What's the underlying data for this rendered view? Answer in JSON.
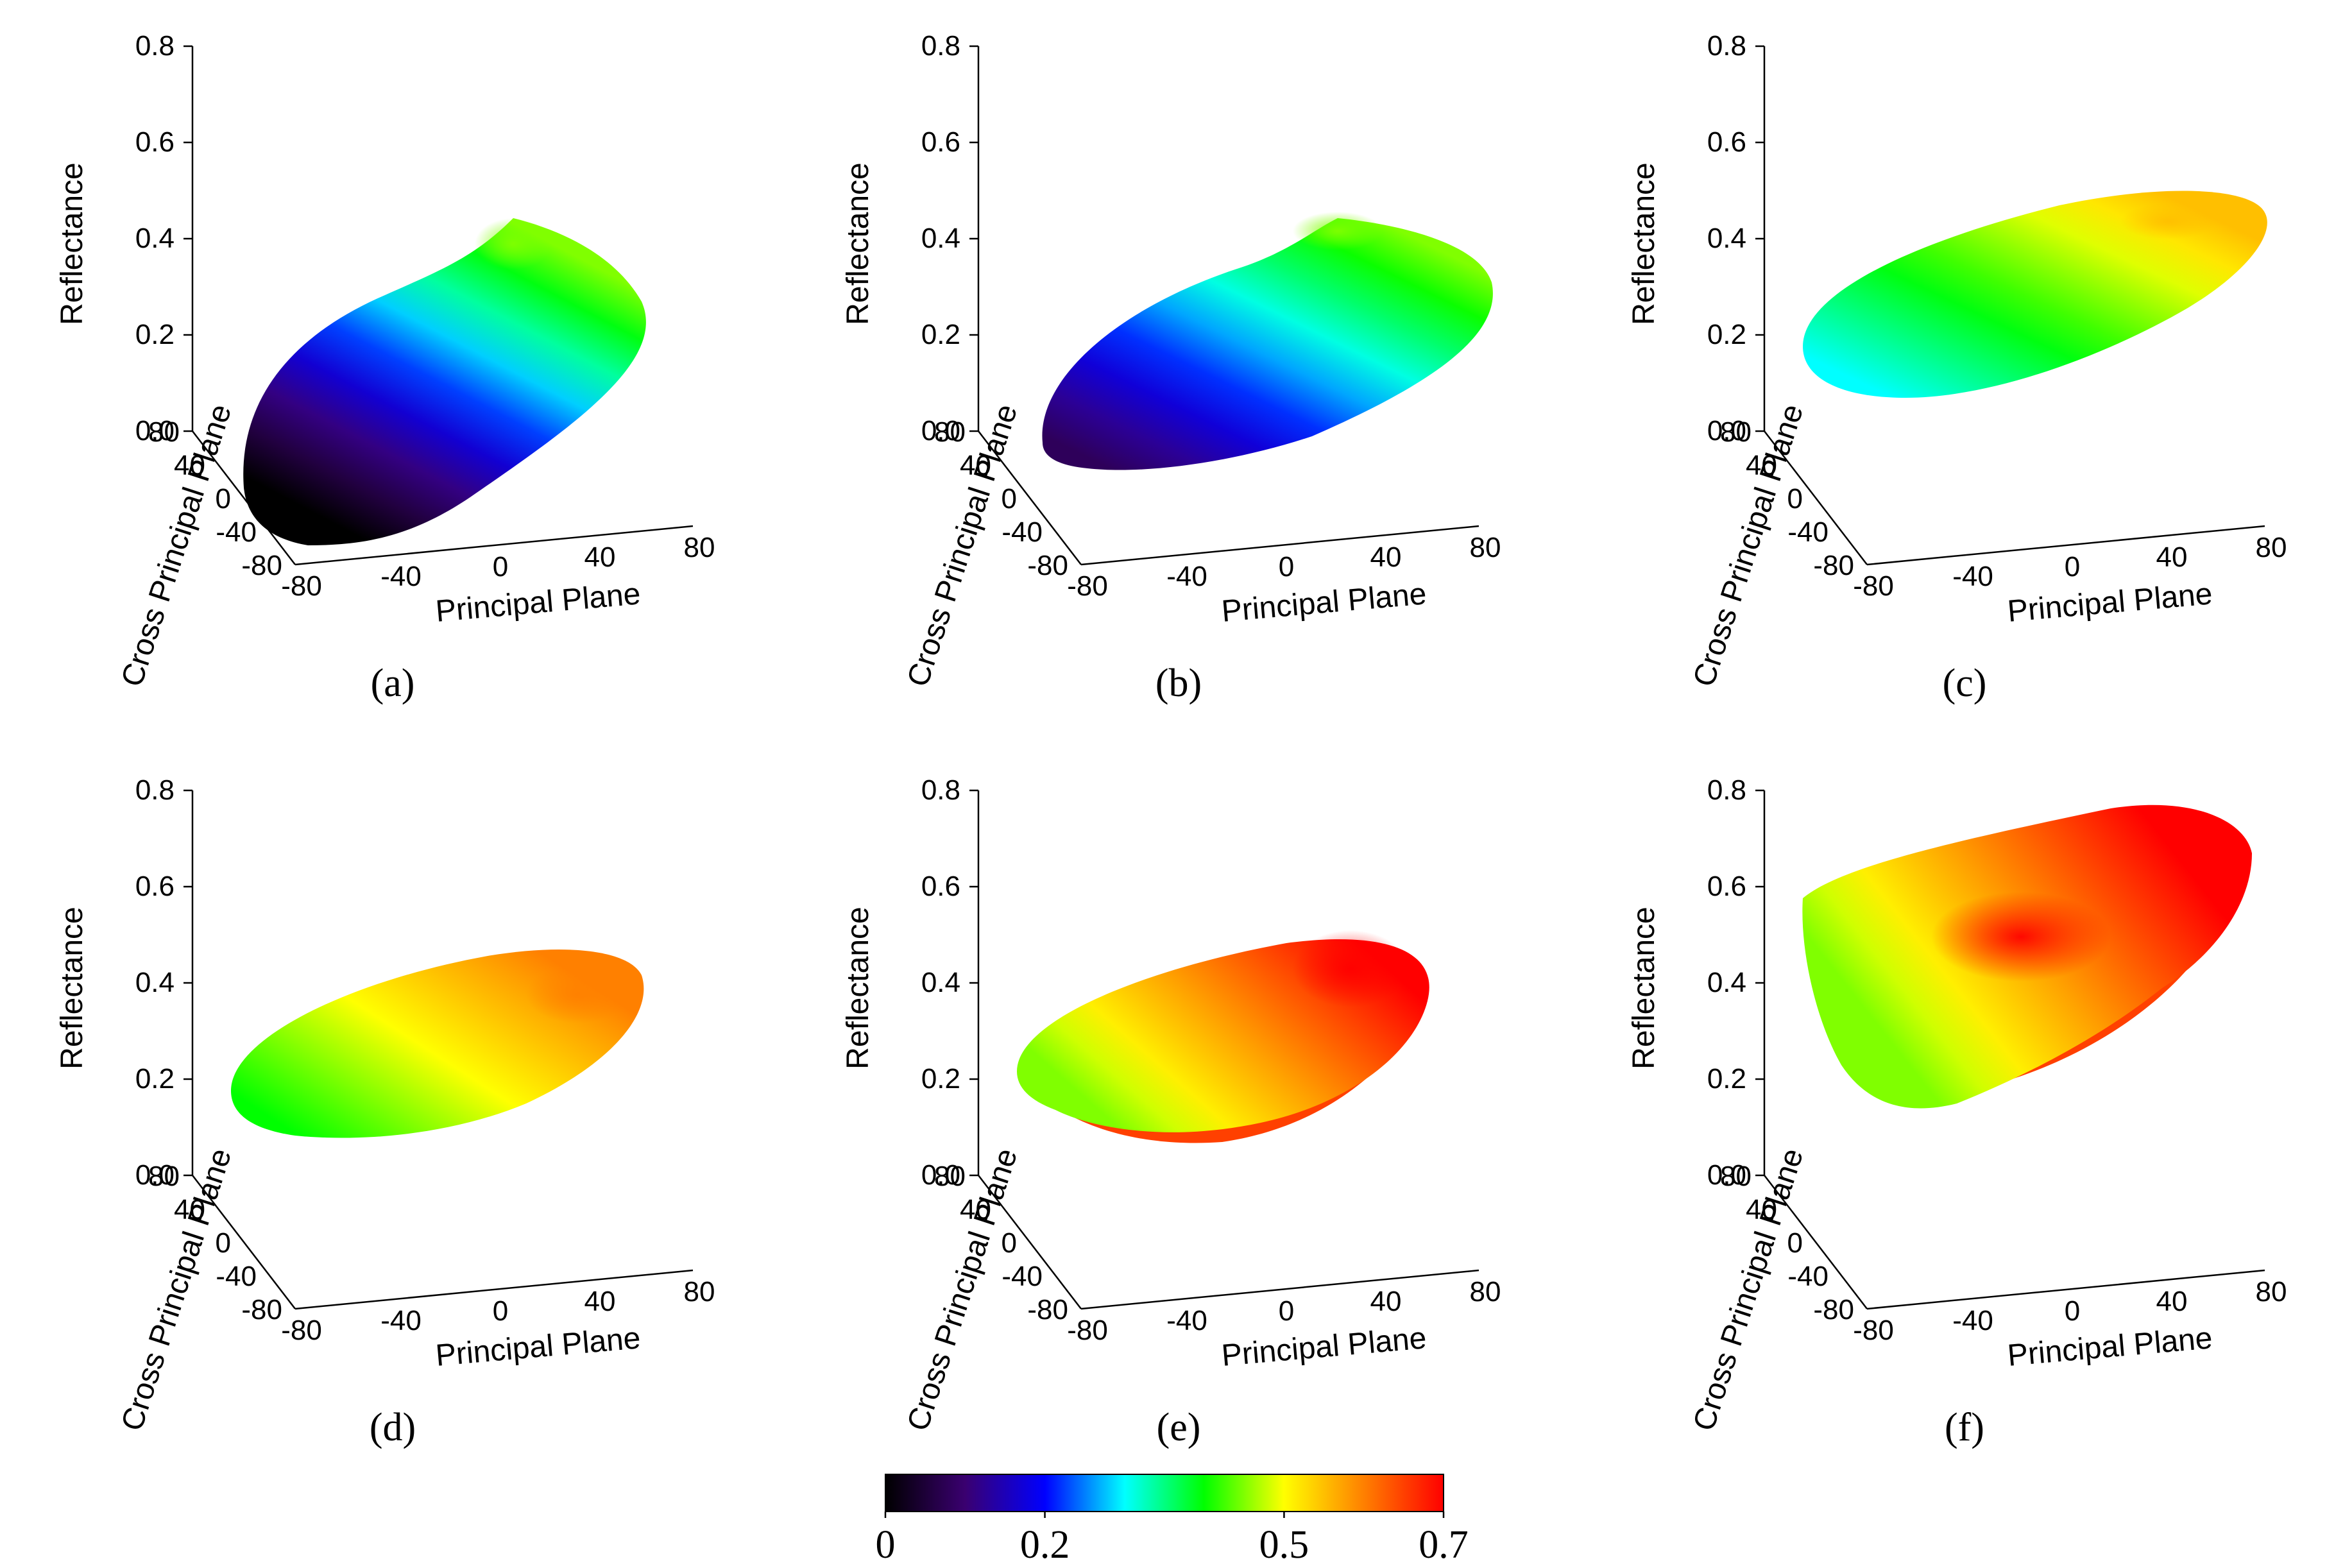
{
  "chart_data": {
    "type": "3d-surface",
    "panels": [
      {
        "id": "a",
        "label": "(a)",
        "zlim": [
          0.0,
          0.8
        ],
        "z_ticks": [
          "0.0",
          "0.2",
          "0.4",
          "0.6",
          "0.8"
        ],
        "x_ticks": [
          "-80",
          "-40",
          "0",
          "40",
          "80"
        ],
        "y_ticks": [
          "-80",
          "-40",
          "0",
          "40",
          "80"
        ],
        "zlabel": "Reflectance",
        "xlabel": "Principal Plane",
        "ylabel": "Cross Principal Plane",
        "surface": {
          "min": 0.0,
          "max": 0.45,
          "bowl": false
        }
      },
      {
        "id": "b",
        "label": "(b)",
        "zlim": [
          0.0,
          0.8
        ],
        "z_ticks": [
          "0.0",
          "0.2",
          "0.4",
          "0.6",
          "0.8"
        ],
        "x_ticks": [
          "-80",
          "-40",
          "0",
          "40",
          "80"
        ],
        "y_ticks": [
          "-80",
          "-40",
          "0",
          "40",
          "80"
        ],
        "zlabel": "Reflectance",
        "xlabel": "Principal Plane",
        "ylabel": "Cross Principal Plane",
        "surface": {
          "min": 0.08,
          "max": 0.45,
          "bowl": false
        }
      },
      {
        "id": "c",
        "label": "(c)",
        "zlim": [
          0.0,
          0.8
        ],
        "z_ticks": [
          "0.0",
          "0.2",
          "0.4",
          "0.6",
          "0.8"
        ],
        "x_ticks": [
          "-80",
          "-40",
          "0",
          "40",
          "80"
        ],
        "y_ticks": [
          "-80",
          "-40",
          "0",
          "40",
          "80"
        ],
        "zlabel": "Reflectance",
        "xlabel": "Principal Plane",
        "ylabel": "Cross Principal Plane",
        "surface": {
          "min": 0.3,
          "max": 0.55,
          "bowl": false
        }
      },
      {
        "id": "d",
        "label": "(d)",
        "zlim": [
          0.0,
          0.8
        ],
        "z_ticks": [
          "0.0",
          "0.2",
          "0.4",
          "0.6",
          "0.8"
        ],
        "x_ticks": [
          "-80",
          "-40",
          "0",
          "40",
          "80"
        ],
        "y_ticks": [
          "-80",
          "-40",
          "0",
          "40",
          "80"
        ],
        "zlabel": "Reflectance",
        "xlabel": "Principal Plane",
        "ylabel": "Cross Principal Plane",
        "surface": {
          "min": 0.4,
          "max": 0.6,
          "bowl": false
        }
      },
      {
        "id": "e",
        "label": "(e)",
        "zlim": [
          0.0,
          0.8
        ],
        "z_ticks": [
          "0.0",
          "0.2",
          "0.4",
          "0.6",
          "0.8"
        ],
        "x_ticks": [
          "-80",
          "-40",
          "0",
          "40",
          "80"
        ],
        "y_ticks": [
          "-80",
          "-40",
          "0",
          "40",
          "80"
        ],
        "zlabel": "Reflectance",
        "xlabel": "Principal Plane",
        "ylabel": "Cross Principal Plane",
        "surface": {
          "min": 0.45,
          "max": 0.7,
          "bowl": true
        }
      },
      {
        "id": "f",
        "label": "(f)",
        "zlim": [
          0.0,
          0.8
        ],
        "z_ticks": [
          "0.0",
          "0.2",
          "0.4",
          "0.6",
          "0.8"
        ],
        "x_ticks": [
          "-80",
          "-40",
          "0",
          "40",
          "80"
        ],
        "y_ticks": [
          "-80",
          "-40",
          "0",
          "40",
          "80"
        ],
        "zlabel": "Reflectance",
        "xlabel": "Principal Plane",
        "ylabel": "Cross Principal Plane",
        "surface": {
          "min": 0.45,
          "max": 0.7,
          "bowl": true
        }
      }
    ],
    "colorbar": {
      "range": [
        0,
        0.7
      ],
      "ticks": [
        {
          "value": 0,
          "label": "0"
        },
        {
          "value": 0.2,
          "label": "0.2"
        },
        {
          "value": 0.5,
          "label": "0.5"
        },
        {
          "value": 0.7,
          "label": "0.7"
        }
      ],
      "colormap": [
        "#000000",
        "#3a0070",
        "#0000ff",
        "#00ffff",
        "#00ff00",
        "#ffff00",
        "#ff8000",
        "#ff0000"
      ]
    }
  }
}
